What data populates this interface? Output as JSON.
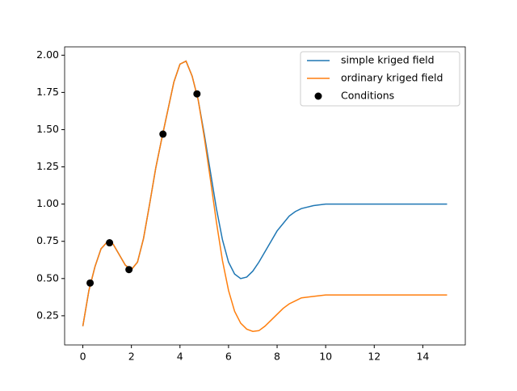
{
  "chart_data": {
    "type": "line",
    "x": [
      0,
      0.25,
      0.5,
      0.75,
      1,
      1.25,
      1.5,
      1.75,
      2,
      2.25,
      2.5,
      2.75,
      3,
      3.25,
      3.5,
      3.75,
      4,
      4.25,
      4.5,
      4.75,
      5,
      5.25,
      5.5,
      5.75,
      6,
      6.25,
      6.5,
      6.75,
      7,
      7.25,
      7.5,
      7.75,
      8,
      8.25,
      8.5,
      8.75,
      9,
      9.5,
      10,
      11,
      12,
      13,
      14,
      15
    ],
    "series": [
      {
        "name": "simple kriged field",
        "color": "#1f77b4",
        "values": [
          0.18,
          0.42,
          0.58,
          0.7,
          0.745,
          0.73,
          0.66,
          0.59,
          0.56,
          0.61,
          0.77,
          1.0,
          1.24,
          1.44,
          1.63,
          1.82,
          1.94,
          1.96,
          1.86,
          1.7,
          1.47,
          1.22,
          0.97,
          0.76,
          0.61,
          0.53,
          0.5,
          0.51,
          0.55,
          0.61,
          0.68,
          0.75,
          0.82,
          0.87,
          0.92,
          0.95,
          0.97,
          0.99,
          1.0,
          1.0,
          1.0,
          1.0,
          1.0,
          1.0
        ]
      },
      {
        "name": "ordinary kriged field",
        "color": "#ff7f0e",
        "values": [
          0.18,
          0.42,
          0.58,
          0.7,
          0.745,
          0.73,
          0.66,
          0.59,
          0.56,
          0.61,
          0.77,
          1.0,
          1.24,
          1.44,
          1.63,
          1.82,
          1.94,
          1.96,
          1.86,
          1.7,
          1.45,
          1.17,
          0.88,
          0.62,
          0.42,
          0.28,
          0.2,
          0.16,
          0.145,
          0.15,
          0.18,
          0.22,
          0.26,
          0.3,
          0.33,
          0.35,
          0.37,
          0.38,
          0.39,
          0.39,
          0.39,
          0.39,
          0.39,
          0.39
        ]
      }
    ],
    "points": {
      "name": "Conditions",
      "color": "#000000",
      "x": [
        0.3,
        1.1,
        1.9,
        3.3,
        4.7
      ],
      "values": [
        0.47,
        0.74,
        0.56,
        1.47,
        1.74
      ]
    },
    "xlim": [
      -0.75,
      15.75
    ],
    "ylim": [
      0.054,
      2.056
    ],
    "xticks": [
      0,
      2,
      4,
      6,
      8,
      10,
      12,
      14
    ],
    "yticks": [
      0.25,
      {
        "value": 0.5,
        "label": "0.50"
      },
      0.75,
      {
        "value": 1,
        "label": "1.00"
      },
      1.25,
      {
        "value": 1.5,
        "label": "1.50"
      },
      1.75,
      {
        "value": 2,
        "label": "2.00"
      }
    ],
    "legend": "upper right"
  }
}
